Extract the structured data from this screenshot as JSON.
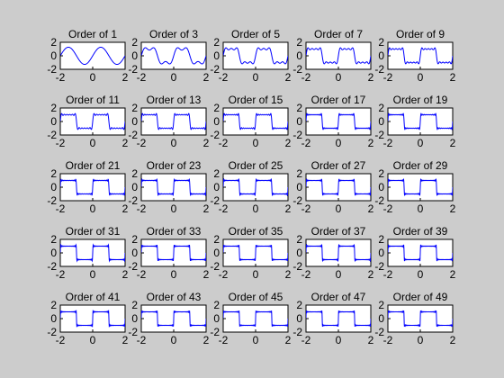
{
  "figure": {
    "background": "#cccccc",
    "axes_background": "#ffffff",
    "axes_color": "#000000",
    "line_color": "#0000ff"
  },
  "chart_data": {
    "type": "line",
    "layout": {
      "rows": 5,
      "cols": 5
    },
    "function": "fourier-series partial sum of a square wave (period 2, amplitude 1)",
    "xlim": [
      -2,
      2
    ],
    "ylim": [
      -2,
      2
    ],
    "xticks": [
      -2,
      0,
      2
    ],
    "yticks": [
      -2,
      0,
      2
    ],
    "xtick_labels": [
      "-2",
      "0",
      "2"
    ],
    "ytick_labels": [
      "-2",
      "0",
      "2"
    ],
    "grid": false,
    "legend": "none",
    "subplots": [
      {
        "title": "Order of 1",
        "order": 1
      },
      {
        "title": "Order of 3",
        "order": 3
      },
      {
        "title": "Order of 5",
        "order": 5
      },
      {
        "title": "Order of 7",
        "order": 7
      },
      {
        "title": "Order of 9",
        "order": 9
      },
      {
        "title": "Order of 11",
        "order": 11
      },
      {
        "title": "Order of 13",
        "order": 13
      },
      {
        "title": "Order of 15",
        "order": 15
      },
      {
        "title": "Order of 17",
        "order": 17
      },
      {
        "title": "Order of 19",
        "order": 19
      },
      {
        "title": "Order of 21",
        "order": 21
      },
      {
        "title": "Order of 23",
        "order": 23
      },
      {
        "title": "Order of 25",
        "order": 25
      },
      {
        "title": "Order of 27",
        "order": 27
      },
      {
        "title": "Order of 29",
        "order": 29
      },
      {
        "title": "Order of 31",
        "order": 31
      },
      {
        "title": "Order of 33",
        "order": 33
      },
      {
        "title": "Order of 35",
        "order": 35
      },
      {
        "title": "Order of 37",
        "order": 37
      },
      {
        "title": "Order of 39",
        "order": 39
      },
      {
        "title": "Order of 41",
        "order": 41
      },
      {
        "title": "Order of 43",
        "order": 43
      },
      {
        "title": "Order of 45",
        "order": 45
      },
      {
        "title": "Order of 47",
        "order": 47
      },
      {
        "title": "Order of 49",
        "order": 49
      }
    ]
  }
}
